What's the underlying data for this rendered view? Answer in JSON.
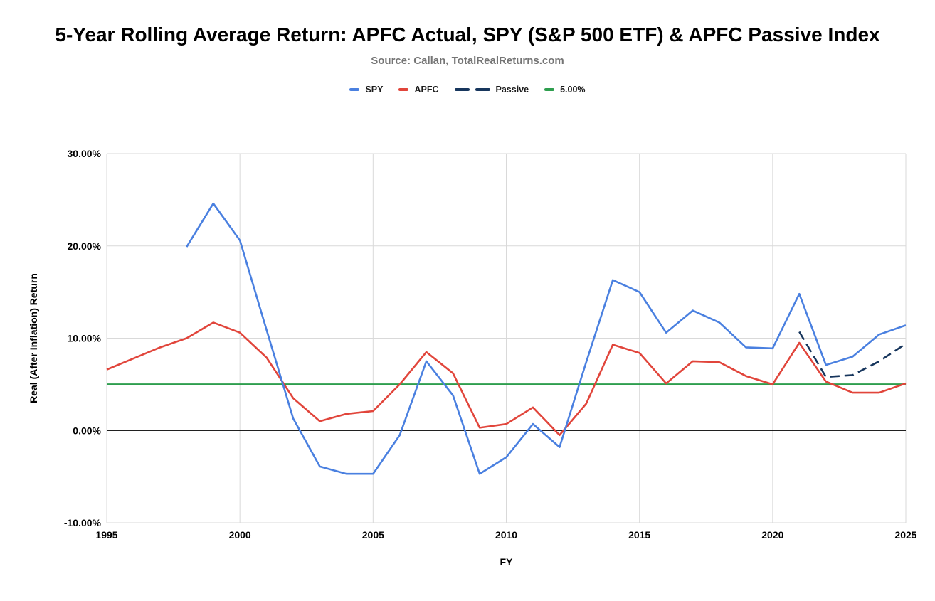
{
  "chart_data": {
    "type": "line",
    "title": "5-Year Rolling Average Return: APFC Actual, SPY (S&P 500 ETF) & APFC Passive Index",
    "subtitle": "Source: Callan, TotalRealReturns.com",
    "xlabel": "FY",
    "ylabel": "Real (After Inflation) Return",
    "xlim": [
      1995,
      2025
    ],
    "ylim": [
      -10,
      30
    ],
    "grid": true,
    "legend_position": "top",
    "grid_color": "#d9d9d9",
    "zero_line_color": "#000000",
    "x_ticks": [
      1995,
      2000,
      2005,
      2010,
      2015,
      2020,
      2025
    ],
    "y_ticks": [
      {
        "value": 30,
        "label": "30.00%"
      },
      {
        "value": 20,
        "label": "20.00%"
      },
      {
        "value": 10,
        "label": "10.00%"
      },
      {
        "value": 0,
        "label": "0.00%"
      },
      {
        "value": -10,
        "label": "-10.00%"
      }
    ],
    "draw_order": [
      "benchmark-5pct",
      "apfc",
      "spy",
      "passive"
    ],
    "series": [
      {
        "id": "spy",
        "name": "SPY",
        "color": "#4a80e0",
        "style": "solid",
        "years": [
          1998,
          1999,
          2000,
          2001,
          2002,
          2003,
          2004,
          2005,
          2006,
          2007,
          2008,
          2009,
          2010,
          2011,
          2012,
          2013,
          2014,
          2015,
          2016,
          2017,
          2018,
          2019,
          2020,
          2021,
          2022,
          2023,
          2024,
          2025
        ],
        "values": [
          19.9,
          24.6,
          20.6,
          10.9,
          1.3,
          -3.9,
          -4.7,
          -4.7,
          -0.5,
          7.5,
          3.8,
          -4.7,
          -2.9,
          0.7,
          -1.8,
          7.4,
          16.3,
          15.0,
          10.6,
          13.0,
          11.7,
          9.0,
          8.9,
          14.8,
          7.1,
          8.0,
          10.4,
          11.4
        ]
      },
      {
        "id": "apfc",
        "name": "APFC",
        "color": "#e1453b",
        "style": "solid",
        "years": [
          1995,
          1996,
          1997,
          1998,
          1999,
          2000,
          2001,
          2002,
          2003,
          2004,
          2005,
          2006,
          2007,
          2008,
          2009,
          2010,
          2011,
          2012,
          2013,
          2014,
          2015,
          2016,
          2017,
          2018,
          2019,
          2020,
          2021,
          2022,
          2023,
          2024,
          2025
        ],
        "values": [
          6.6,
          7.8,
          9.0,
          10.0,
          11.7,
          10.6,
          7.9,
          3.5,
          1.0,
          1.8,
          2.1,
          5.0,
          8.5,
          6.2,
          0.3,
          0.7,
          2.5,
          -0.5,
          2.9,
          9.3,
          8.4,
          5.1,
          7.5,
          7.4,
          5.9,
          5.0,
          9.5,
          5.3,
          4.1,
          4.1,
          5.1
        ]
      },
      {
        "id": "passive",
        "name": "Passive",
        "color": "#17365d",
        "style": "dashed",
        "years": [
          2021,
          2022,
          2023,
          2024,
          2025
        ],
        "values": [
          10.7,
          5.8,
          6.0,
          7.5,
          9.4
        ]
      },
      {
        "id": "benchmark-5pct",
        "name": "5.00%",
        "color": "#2e9e4e",
        "style": "solid",
        "years": [
          1995,
          2025
        ],
        "values": [
          5,
          5
        ]
      }
    ]
  }
}
